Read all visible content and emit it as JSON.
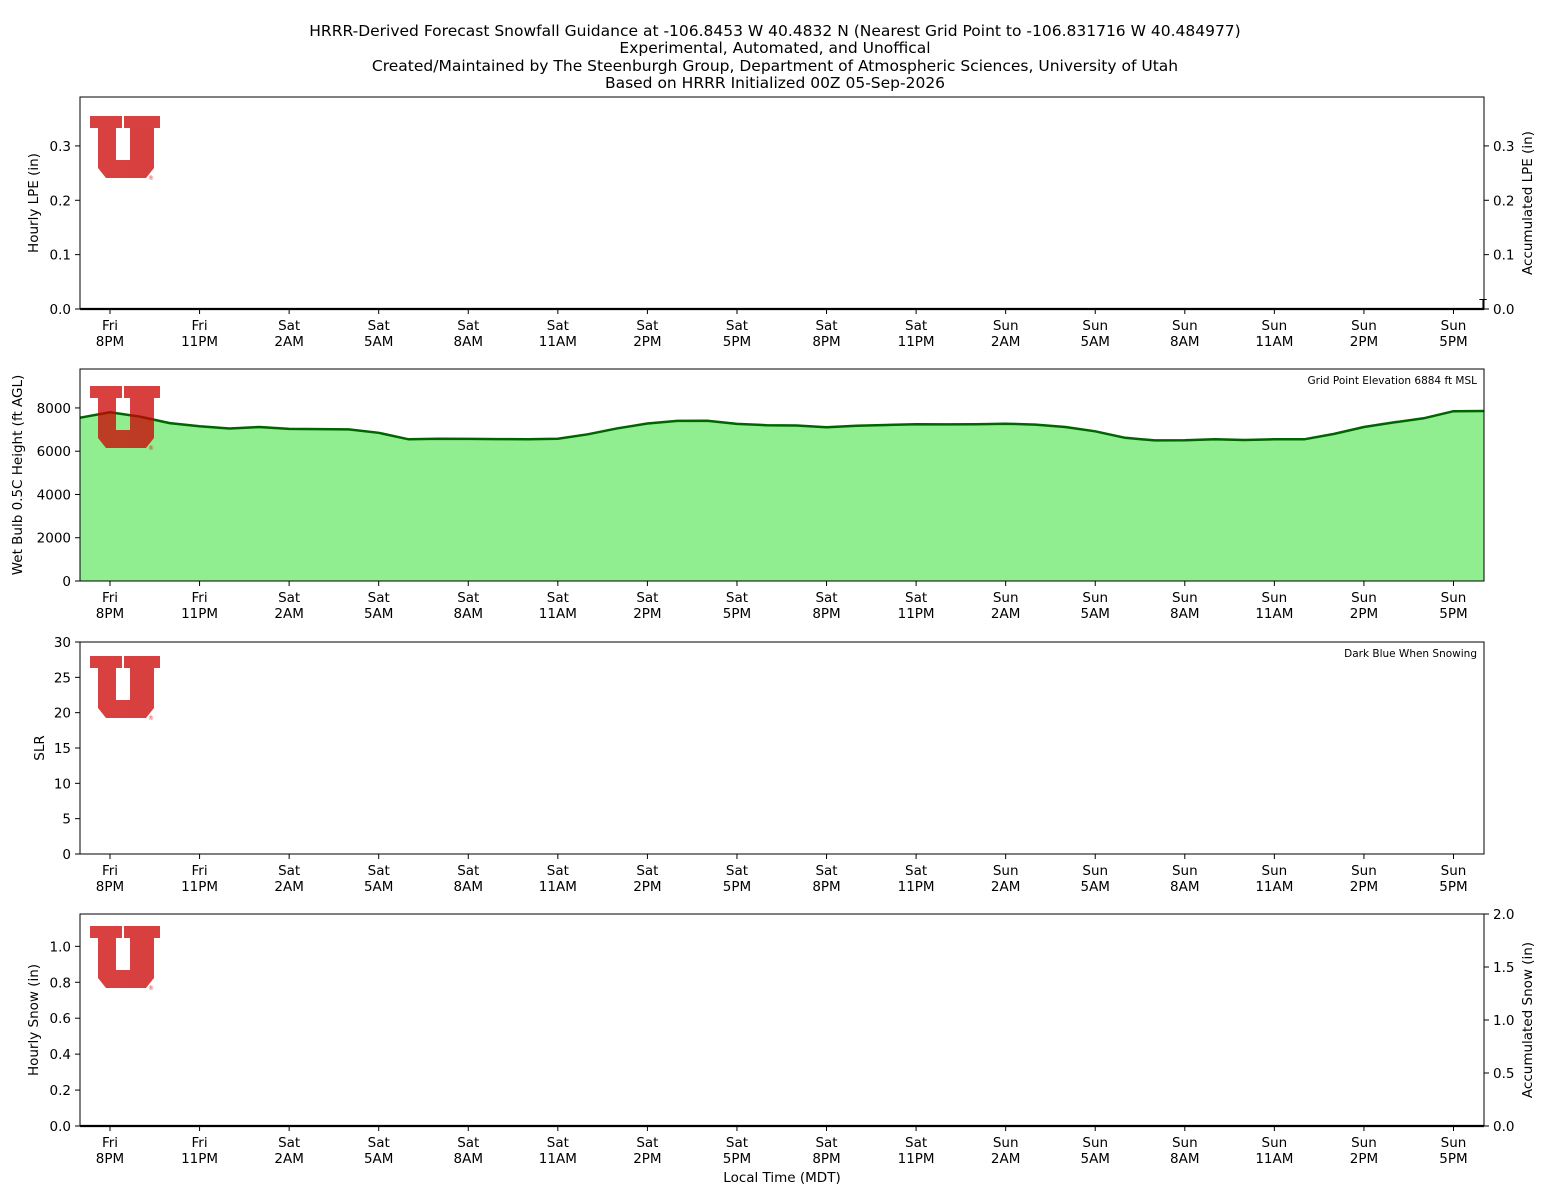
{
  "header": {
    "lines": [
      "HRRR-Derived Forecast Snowfall Guidance at -106.8453 W 40.4832 N (Nearest Grid Point to -106.831716 W 40.484977)",
      "Experimental, Automated, and Unoffical",
      "Created/Maintained by The Steenburgh Group, Department of Atmospheric Sciences, University of Utah",
      "Based on HRRR Initialized 00Z 05-Sep-2026"
    ]
  },
  "logo": {
    "colors": {
      "fill": "#cc0000"
    },
    "text": "U",
    "mark": "®"
  },
  "colors": {
    "green_fill": "#90ee90",
    "green_line": "#006400",
    "black": "#000000"
  },
  "time_ticks": [
    [
      "Fri",
      "8PM"
    ],
    [
      "Fri",
      "11PM"
    ],
    [
      "Sat",
      "2AM"
    ],
    [
      "Sat",
      "5AM"
    ],
    [
      "Sat",
      "8AM"
    ],
    [
      "Sat",
      "11AM"
    ],
    [
      "Sat",
      "2PM"
    ],
    [
      "Sat",
      "5PM"
    ],
    [
      "Sat",
      "8PM"
    ],
    [
      "Sat",
      "11PM"
    ],
    [
      "Sun",
      "2AM"
    ],
    [
      "Sun",
      "5AM"
    ],
    [
      "Sun",
      "8AM"
    ],
    [
      "Sun",
      "11AM"
    ],
    [
      "Sun",
      "2PM"
    ],
    [
      "Sun",
      "5PM"
    ]
  ],
  "chart_data": [
    {
      "type": "bar",
      "title": "",
      "ylabel": "Hourly LPE (in)",
      "y2label": "Accumulated LPE (in)",
      "ylim": [
        0,
        0.39
      ],
      "yticks": [
        0.0,
        0.1,
        0.2,
        0.3
      ],
      "y2ticks": [
        0.0,
        0.1,
        0.2,
        0.3
      ],
      "series": [
        {
          "values": [
            0,
            0,
            0,
            0,
            0,
            0,
            0,
            0,
            0,
            0,
            0,
            0,
            0,
            0,
            0,
            0,
            0,
            0,
            0,
            0,
            0,
            0,
            0,
            0,
            0,
            0,
            0,
            0,
            0,
            0,
            0,
            0,
            0,
            0,
            0,
            0,
            0,
            0,
            0,
            0,
            0,
            0,
            0,
            0,
            0,
            0,
            0,
            0,
            0
          ]
        },
        {
          "values": [
            0,
            0,
            0,
            0,
            0,
            0,
            0,
            0,
            0,
            0,
            0,
            0,
            0,
            0,
            0,
            0,
            0,
            0,
            0,
            0,
            0,
            0,
            0,
            0,
            0,
            0,
            0,
            0,
            0,
            0,
            0,
            0,
            0,
            0,
            0,
            0,
            0,
            0,
            0,
            0,
            0,
            0,
            0,
            0,
            0,
            0,
            0,
            0,
            0.001
          ]
        }
      ],
      "annotation": "T"
    },
    {
      "type": "area",
      "ylabel": "Wet Bulb 0.5C Height (ft AGL)",
      "ylim": [
        0,
        9800
      ],
      "yticks": [
        0,
        2000,
        4000,
        6000,
        8000
      ],
      "annotation": "Grid Point Elevation 6884 ft MSL",
      "x": [
        -1,
        0,
        1,
        2,
        3,
        4,
        5,
        6,
        7,
        8,
        9,
        10,
        11,
        12,
        13,
        14,
        15,
        16,
        17,
        18,
        19,
        20,
        21,
        22,
        23,
        24,
        25,
        26,
        27,
        28,
        29,
        30,
        31,
        32,
        33,
        34,
        35,
        36,
        37,
        38,
        39,
        40,
        41,
        42,
        43,
        44,
        45,
        46,
        47
      ],
      "values": [
        7550,
        7800,
        7600,
        7300,
        7150,
        7050,
        7120,
        7030,
        7020,
        7010,
        6850,
        6550,
        6580,
        6570,
        6560,
        6550,
        6580,
        6780,
        7060,
        7280,
        7400,
        7410,
        7260,
        7200,
        7190,
        7110,
        7180,
        7210,
        7250,
        7240,
        7250,
        7270,
        7230,
        7120,
        6920,
        6620,
        6500,
        6510,
        6550,
        6520,
        6550,
        6550,
        6800,
        7120,
        7330,
        7520,
        7850,
        7860,
        7860
      ]
    },
    {
      "type": "bar",
      "ylabel": "SLR",
      "ylim": [
        0,
        30
      ],
      "yticks": [
        0,
        5,
        10,
        15,
        20,
        25,
        30
      ],
      "annotation": "Dark Blue When Snowing",
      "values": []
    },
    {
      "type": "bar",
      "ylabel": "Hourly Snow (in)",
      "y2label": "Accumulated Snow (in)",
      "ylim": [
        0,
        1.18
      ],
      "yticks": [
        0.0,
        0.2,
        0.4,
        0.6,
        0.8,
        1.0
      ],
      "y2lim": [
        0,
        2.0
      ],
      "y2ticks": [
        0.0,
        0.5,
        1.0,
        1.5,
        2.0
      ],
      "xlabel": "Local Time (MDT)",
      "series": [
        {
          "values": [
            0,
            0,
            0,
            0,
            0,
            0,
            0,
            0,
            0,
            0,
            0,
            0,
            0,
            0,
            0,
            0,
            0,
            0,
            0,
            0,
            0,
            0,
            0,
            0,
            0,
            0,
            0,
            0,
            0,
            0,
            0,
            0,
            0,
            0,
            0,
            0,
            0,
            0,
            0,
            0,
            0,
            0,
            0,
            0,
            0,
            0,
            0,
            0,
            0
          ]
        },
        {
          "values": [
            0,
            0,
            0,
            0,
            0,
            0,
            0,
            0,
            0,
            0,
            0,
            0,
            0,
            0,
            0,
            0,
            0,
            0,
            0,
            0,
            0,
            0,
            0,
            0,
            0,
            0,
            0,
            0,
            0,
            0,
            0,
            0,
            0,
            0,
            0,
            0,
            0,
            0,
            0,
            0,
            0,
            0,
            0,
            0,
            0,
            0,
            0,
            0,
            0
          ]
        }
      ]
    }
  ]
}
